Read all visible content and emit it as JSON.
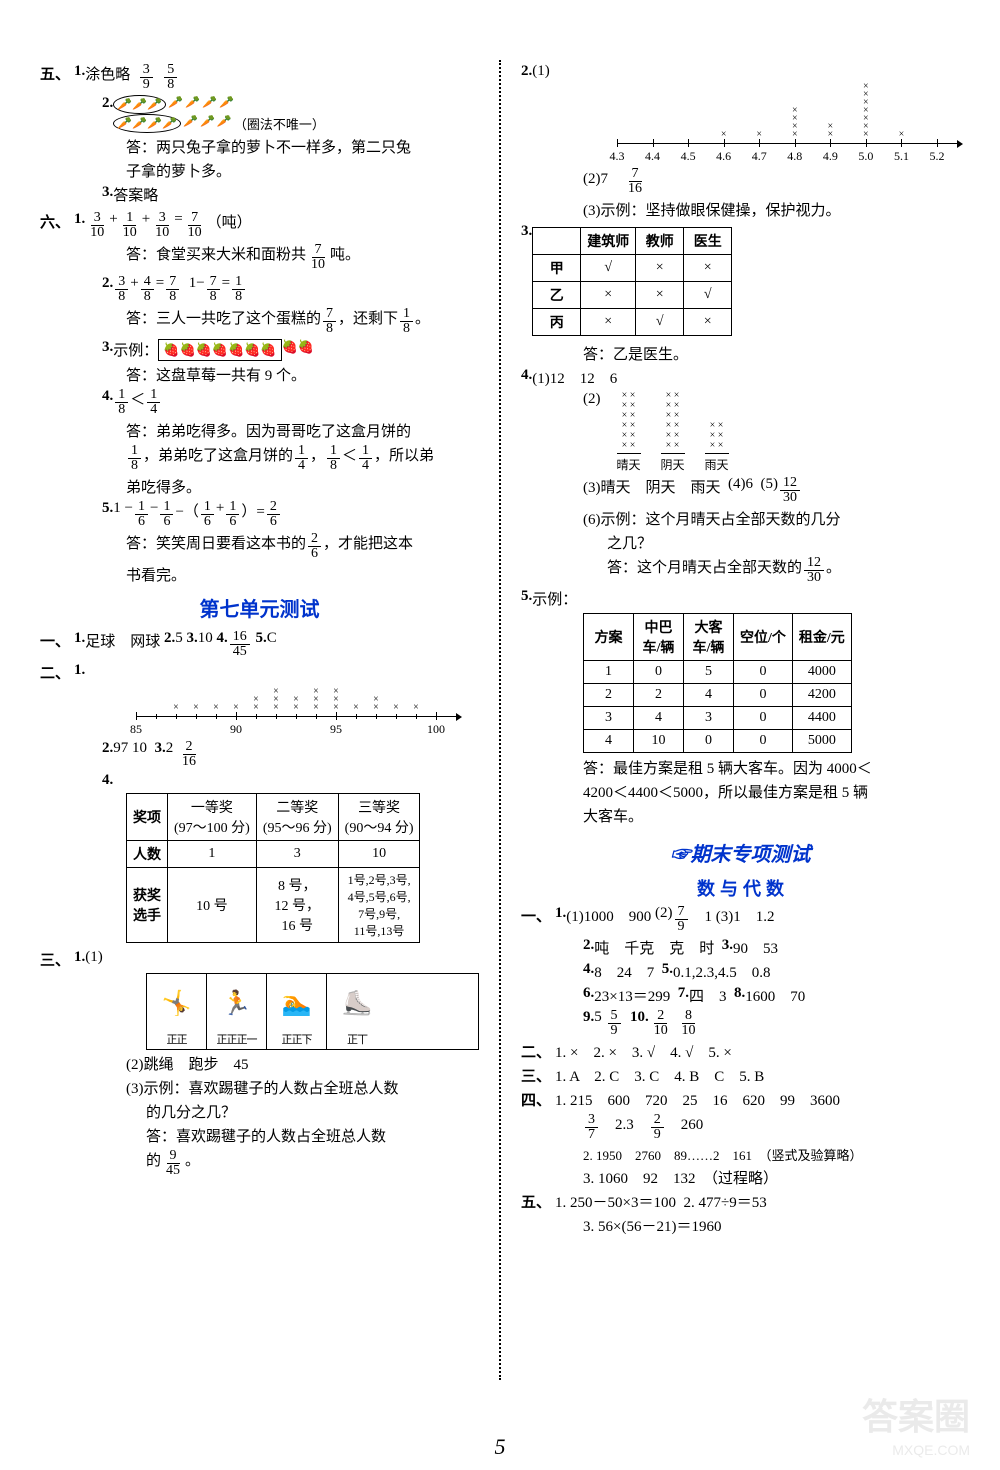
{
  "leftCol": {
    "sec5": {
      "label": "五、",
      "q1": {
        "num": "1.",
        "prefix": "涂色略",
        "f1n": "3",
        "f1d": "9",
        "f2n": "5",
        "f2d": "8"
      },
      "q2": {
        "num": "2.",
        "note": "（圈法不唯一）",
        "ansLine1": "答：两只兔子拿的萝卜不一样多，第二只兔",
        "ansLine2": "子拿的萝卜多。"
      },
      "q3": {
        "num": "3.",
        "text": "答案略"
      }
    },
    "sec6": {
      "label": "六、",
      "q1": {
        "num": "1.",
        "eq": {
          "a_n": "3",
          "a_d": "10",
          "b_n": "1",
          "b_d": "10",
          "c_n": "3",
          "c_d": "10",
          "r_n": "7",
          "r_d": "10",
          "unit": "（吨）"
        },
        "ans_pre": "答：食堂买来大米和面粉共",
        "ans_fn": "7",
        "ans_fd": "10",
        "ans_suf": "吨。"
      },
      "q2": {
        "num": "2.",
        "eq1": {
          "a_n": "3",
          "a_d": "8",
          "b_n": "4",
          "b_d": "8",
          "r_n": "7",
          "r_d": "8"
        },
        "eq2": {
          "one": "1",
          "a_n": "7",
          "a_d": "8",
          "r_n": "1",
          "r_d": "8"
        },
        "ans_pre": "答：三人一共吃了这个蛋糕的",
        "f1n": "7",
        "f1d": "8",
        "mid": "，还剩下",
        "f2n": "1",
        "f2d": "8",
        "suf": "。"
      },
      "q3": {
        "num": "3.",
        "prefix": "示例：",
        "berries_in": "🍓🍓🍓🍓🍓🍓🍓",
        "berries_out": "🍓🍓",
        "ans": "答：这盘草莓一共有 9 个。"
      },
      "q4": {
        "num": "4.",
        "cmp": {
          "an": "1",
          "ad": "8",
          "op": "＜",
          "bn": "1",
          "bd": "4"
        },
        "ans1": "答：弟弟吃得多。因为哥哥吃了这盒月饼的",
        "ans2a_n": "1",
        "ans2a_d": "8",
        "ans2_mid": "，弟弟吃了这盒月饼的",
        "ans2b_n": "1",
        "ans2b_d": "4",
        "ans2_comma": "，",
        "ans2c_an": "1",
        "ans2c_ad": "8",
        "ans2c_op": "＜",
        "ans2c_bn": "1",
        "ans2c_bd": "4",
        "ans2_suf": "，所以弟",
        "ans3": "弟吃得多。"
      },
      "q5": {
        "num": "5.",
        "eq_pre": "1 −",
        "an": "1",
        "ad": "6",
        "minus": "−",
        "bn": "1",
        "bd": "6",
        "lp": "−（",
        "cn": "1",
        "cd": "6",
        "plus": "+",
        "dn": "1",
        "dd": "6",
        "rp": "）=",
        "rn": "2",
        "rd": "6",
        "ans_pre": "答：笑笑周日要看这本书的",
        "fn": "2",
        "fd": "6",
        "ans_suf": "，才能把这本",
        "ans2": "书看完。"
      }
    },
    "unit7": {
      "title": "第七单元测试",
      "sec1": {
        "label": "一、",
        "q1n": "1.",
        "q1": "足球　网球",
        "q2n": "2.",
        "q2": "5",
        "q3n": "3.",
        "q3": "10",
        "q4n": "4.",
        "q4_fn": "16",
        "q4_fd": "45",
        "q5n": "5.",
        "q5": "C"
      },
      "sec2": {
        "label": "二、",
        "q1n": "1.",
        "nl": {
          "ticks": [
            85,
            90,
            95,
            100
          ],
          "xs": [
            87,
            88,
            89,
            90,
            91,
            91,
            92,
            92,
            92,
            93,
            93,
            94,
            94,
            94,
            95,
            95,
            95,
            96,
            97,
            97,
            98,
            99
          ]
        },
        "q2n": "2.",
        "q2a": "97",
        "q2b": "10",
        "q3n": "3.",
        "q3a": "2",
        "q3_fn": "2",
        "q3_fd": "16",
        "q4n": "4.",
        "table4": {
          "h1": "奖项",
          "h2a": "一等奖",
          "h2b": "(97～100 分)",
          "h3a": "二等奖",
          "h3b": "(95～96 分)",
          "h4a": "三等奖",
          "h4b": "(90～94 分)",
          "r2h": "人数",
          "r2a": "1",
          "r2b": "3",
          "r2c": "10",
          "r3h": "获奖\n选手",
          "r3a": "10 号",
          "r3b": "8 号，\n12 号，\n16 号",
          "r3c": "1号,2号,3号,\n4号,5号,6号,\n7号,9号,\n11号,13号"
        }
      },
      "sec3": {
        "label": "三、",
        "q1n": "1.",
        "sub1": "(1)",
        "sports": [
          {
            "img": "🤸",
            "tally": "正正"
          },
          {
            "img": "🏃",
            "tally": "正正正一"
          },
          {
            "img": "🏊",
            "tally": "正正下"
          },
          {
            "img": "⛸️",
            "tally": "正丅"
          }
        ],
        "sub2": "(2)跳绳　跑步　45",
        "sub3a": "(3)示例：喜欢踢毽子的人数占全班总人数",
        "sub3b": "的几分之几？",
        "sub3c_pre": "答：喜欢踢毽子的人数占全班总人数",
        "sub3d_pre": "的",
        "sub3d_fn": "9",
        "sub3d_fd": "45",
        "sub3d_suf": "。"
      }
    }
  },
  "rightCol": {
    "q2": {
      "num": "2.",
      "sub1": "(1)",
      "nl": {
        "ticks": [
          "4.3",
          "4.4",
          "4.5",
          "4.6",
          "4.7",
          "4.8",
          "4.9",
          "5.0",
          "5.1",
          "5.2"
        ],
        "xs": {
          "4.6": 1,
          "4.7": 1,
          "4.8": 4,
          "4.9": 2,
          "5.0": 7,
          "5.1": 1
        }
      },
      "sub2_pre": "(2)7　",
      "sub2_fn": "7",
      "sub2_fd": "16",
      "sub3": "(3)示例：坚持做眼保健操，保护视力。"
    },
    "q3": {
      "num": "3.",
      "table": {
        "headers": [
          "",
          "建筑师",
          "教师",
          "医生"
        ],
        "rows": [
          [
            "甲",
            "√",
            "×",
            "×"
          ],
          [
            "乙",
            "×",
            "×",
            "√"
          ],
          [
            "丙",
            "×",
            "√",
            "×"
          ]
        ]
      },
      "ans": "答：乙是医生。"
    },
    "q4": {
      "num": "4.",
      "sub1": "(1)12　12　6",
      "sub2": "(2)",
      "weather": {
        "sunny": {
          "label": "晴天",
          "count": 12
        },
        "cloudy": {
          "label": "阴天",
          "count": 12
        },
        "rainy": {
          "label": "雨天",
          "count": 6
        }
      },
      "sub3": "(3)晴天　阴天　雨天",
      "sub4": "(4)6",
      "sub5pre": "(5)",
      "sub5_fn": "12",
      "sub5_fd": "30",
      "sub6a": "(6)示例：这个月晴天占全部天数的几分",
      "sub6b": "之几？",
      "sub6c_pre": "答：这个月晴天占全部天数的",
      "sub6c_fn": "12",
      "sub6c_fd": "30",
      "sub6c_suf": "。"
    },
    "q5": {
      "num": "5.",
      "prefix": "示例：",
      "table": {
        "headers": [
          "方案",
          "中巴\n车/辆",
          "大客\n车/辆",
          "空位/个",
          "租金/元"
        ],
        "rows": [
          [
            "1",
            "0",
            "5",
            "0",
            "4000"
          ],
          [
            "2",
            "2",
            "4",
            "0",
            "4200"
          ],
          [
            "3",
            "4",
            "3",
            "0",
            "4400"
          ],
          [
            "4",
            "10",
            "0",
            "0",
            "5000"
          ]
        ]
      },
      "ans1": "答：最佳方案是租 5 辆大客车。因为 4000＜",
      "ans2": "4200＜4400＜5000，所以最佳方案是租 5 辆",
      "ans3": "大客车。"
    },
    "final": {
      "title": "☞期末专项测试",
      "subtitle": "数 与 代 数",
      "sec1": {
        "label": "一、",
        "q1": {
          "n": "1.",
          "a": "(1)1000　900",
          "b_pre": "(2)",
          "b_fn": "7",
          "b_fd": "9",
          "b_mid": "　1",
          "c": "(3)1　1.2"
        },
        "q2": {
          "n": "2.",
          "t": "吨　千克　克　时"
        },
        "q3": {
          "n": "3.",
          "t": "90　53"
        },
        "q4": {
          "n": "4.",
          "t": "8　24　7"
        },
        "q5": {
          "n": "5.",
          "t": "0.1,2.3,4.5　0.8"
        },
        "q6": {
          "n": "6.",
          "t": "23×13＝299"
        },
        "q7": {
          "n": "7.",
          "t": "四　3"
        },
        "q8": {
          "n": "8.",
          "t": "1600　70"
        },
        "q9": {
          "n": "9.",
          "a": "5",
          "fn": "5",
          "fd": "9"
        },
        "q10": {
          "n": "10.",
          "f1n": "2",
          "f1d": "10",
          "f2n": "8",
          "f2d": "10"
        }
      },
      "sec2": {
        "label": "二、",
        "t": "1. ×　2. ×　3. √　4. √　5. ×"
      },
      "sec3": {
        "label": "三、",
        "t": "1. A　2. C　3. C　4. B　C　5. B"
      },
      "sec4": {
        "label": "四、",
        "q1a": "1. 215　600　720　25　16　620　99　3600",
        "q1b_f1n": "3",
        "q1b_f1d": "7",
        "q1b_mid": "　2.3　",
        "q1b_f2n": "2",
        "q1b_f2d": "9",
        "q1b_end": "　260",
        "q2": "2. 1950　2760　89……2　161　（竖式及验算略）",
        "q3": "3. 1060　92　132　（过程略）"
      },
      "sec5": {
        "label": "五、",
        "q1": "1. 250－50×3＝100",
        "q2": "2. 477÷9＝53",
        "q3": "3. 56×(56－21)＝1960"
      }
    }
  },
  "pagenum": "5",
  "watermark": "答案圈",
  "watermark_url": "MXQE.COM"
}
